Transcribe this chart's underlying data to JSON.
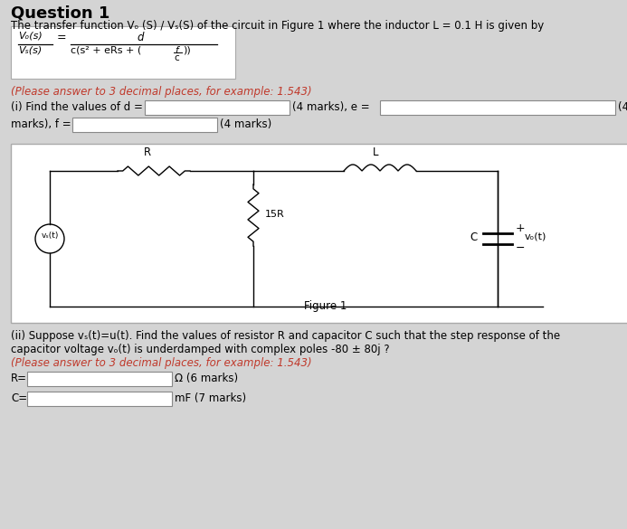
{
  "bg_color": "#d4d4d4",
  "title": "Question 1",
  "subtitle": "The transfer function Vₒ (S) / Vₛ(S) of the circuit in Figure 1 where the inductor L = 0.1 H is given by",
  "orange_note": "(Please answer to 3 decimal places, for example: 1.543)",
  "orange_color": "#c0392b",
  "figure_label": "Figure 1",
  "part_ii_line1": "(ii) Suppose vₛ(t)=u(t). Find the values of resistor R and capacitor C such that the step response of the",
  "part_ii_line2": "capacitor voltage vₒ(t) is underdamped with complex poles -80 ± 80j ?",
  "part_ii_orange": "(Please answer to 3 decimal places, for example: 1.543)"
}
